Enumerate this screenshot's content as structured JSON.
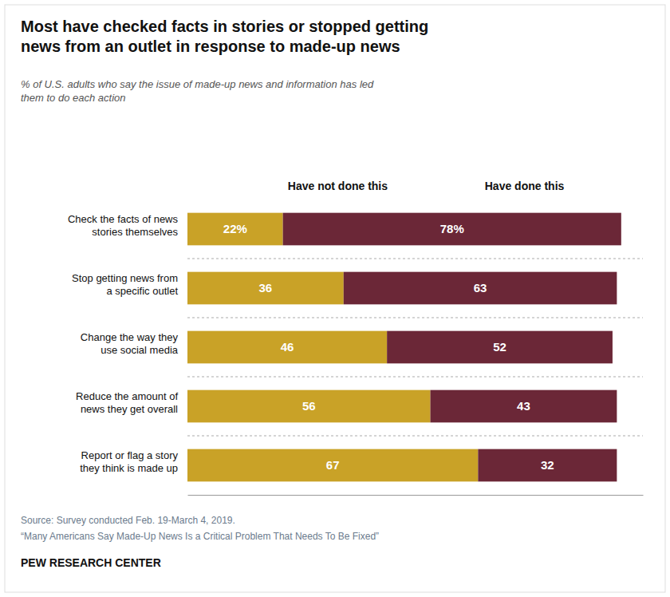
{
  "chart_data": {
    "type": "bar",
    "orientation": "horizontal",
    "stacked": true,
    "data_labels": true,
    "tick_labels": false,
    "grid": false,
    "title": "Most have checked facts in stories or stopped getting\nnews from an outlet in response to made-up news",
    "subtitle": "% of U.S. adults who say the issue of made-up news and information has led\nthem to do each action",
    "categories": [
      "Check the facts of news\nstories themselves",
      "Stop getting news from\na specific outlet",
      "Change the way they\nuse social media",
      "Reduce the amount of\nnews they get overall",
      "Report or flag a story\nthey think is made up"
    ],
    "series": [
      {
        "name": "Have not done this",
        "color": "#C9A227",
        "values": [
          22,
          36,
          46,
          56,
          67
        ],
        "value_labels": [
          "22%",
          "36",
          "46",
          "56",
          "67"
        ]
      },
      {
        "name": "Have done this",
        "color": "#6B2737",
        "values": [
          78,
          63,
          52,
          43,
          32
        ],
        "value_labels": [
          "78%",
          "63",
          "52",
          "43",
          "32"
        ]
      }
    ],
    "xlim": [
      0,
      105
    ],
    "annotations": [
      "Source: Survey conducted Feb. 19-March 4, 2019.",
      "“Many Americans Say Made-Up News Is a Critical Problem That Needs To Be Fixed”",
      "PEW RESEARCH CENTER"
    ]
  }
}
